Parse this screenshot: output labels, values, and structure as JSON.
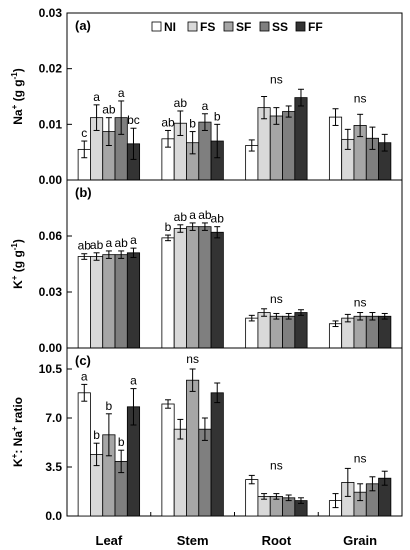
{
  "chart_data": {
    "type": "bar",
    "categories": [
      "Leaf",
      "Stem",
      "Root",
      "Grain"
    ],
    "legend": {
      "placement": "top-center",
      "entries": [
        {
          "name": "NI",
          "color": "#ffffff"
        },
        {
          "name": "FS",
          "color": "#d9d9d9"
        },
        {
          "name": "SF",
          "color": "#a6a6a6"
        },
        {
          "name": "SS",
          "color": "#7f7f7f"
        },
        {
          "name": "FF",
          "color": "#333333"
        }
      ]
    },
    "panels": [
      {
        "label": "(a)",
        "ylabel_main": "Na",
        "ylabel_sup": "+",
        "ylabel_rest": " (g g",
        "ylabel_sup2": "-1",
        "ylabel_end": ")",
        "ylim": [
          0,
          0.03
        ],
        "yticks": [
          "0.00",
          "0.01",
          "0.02",
          "0.03"
        ],
        "ytick_values": [
          0,
          0.01,
          0.02,
          0.03
        ],
        "series": [
          {
            "name": "NI",
            "values": [
              0.0055,
              0.0074,
              0.0062,
              0.0113
            ],
            "errors": [
              0.0015,
              0.0015,
              0.001,
              0.0015
            ]
          },
          {
            "name": "FS",
            "values": [
              0.0112,
              0.0102,
              0.013,
              0.0073
            ],
            "errors": [
              0.0023,
              0.0022,
              0.002,
              0.0018
            ]
          },
          {
            "name": "SF",
            "values": [
              0.0087,
              0.0067,
              0.0115,
              0.0098
            ],
            "errors": [
              0.0025,
              0.002,
              0.0015,
              0.002
            ]
          },
          {
            "name": "SS",
            "values": [
              0.0112,
              0.0104,
              0.0123,
              0.0075
            ],
            "errors": [
              0.003,
              0.0015,
              0.001,
              0.002
            ]
          },
          {
            "name": "FF",
            "values": [
              0.0065,
              0.007,
              0.0148,
              0.0067
            ],
            "errors": [
              0.0028,
              0.003,
              0.0015,
              0.0015
            ]
          }
        ],
        "annotations": [
          {
            "category": 0,
            "labels": [
              "c",
              "a",
              "ab",
              "a",
              "bc"
            ]
          },
          {
            "category": 1,
            "labels": [
              "ab",
              "ab",
              "b",
              "a",
              "b"
            ]
          },
          {
            "category": 2,
            "text": "ns"
          },
          {
            "category": 3,
            "text": "ns"
          }
        ]
      },
      {
        "label": "(b)",
        "ylabel_main": "K",
        "ylabel_sup": "+",
        "ylabel_rest": " (g g",
        "ylabel_sup2": "-1",
        "ylabel_end": ")",
        "ylim": [
          0,
          0.09
        ],
        "yticks": [
          "0.00",
          "0.03",
          "0.06"
        ],
        "ytick_values": [
          0,
          0.03,
          0.06
        ],
        "series": [
          {
            "name": "NI",
            "values": [
              0.049,
              0.059,
              0.016,
              0.013
            ],
            "errors": [
              0.0015,
              0.0015,
              0.0015,
              0.0015
            ]
          },
          {
            "name": "FS",
            "values": [
              0.049,
              0.064,
              0.019,
              0.016
            ],
            "errors": [
              0.002,
              0.002,
              0.002,
              0.002
            ]
          },
          {
            "name": "SF",
            "values": [
              0.05,
              0.065,
              0.017,
              0.017
            ],
            "errors": [
              0.002,
              0.002,
              0.0015,
              0.002
            ]
          },
          {
            "name": "SS",
            "values": [
              0.05,
              0.065,
              0.017,
              0.017
            ],
            "errors": [
              0.002,
              0.002,
              0.0015,
              0.002
            ]
          },
          {
            "name": "FF",
            "values": [
              0.051,
              0.062,
              0.019,
              0.017
            ],
            "errors": [
              0.0025,
              0.003,
              0.0015,
              0.0015
            ]
          }
        ],
        "annotations": [
          {
            "category": 0,
            "labels": [
              "ab",
              "ab",
              "a",
              "ab",
              "a"
            ]
          },
          {
            "category": 1,
            "labels": [
              "b",
              "ab",
              "a",
              "ab",
              "ab"
            ]
          },
          {
            "category": 2,
            "text": "ns"
          },
          {
            "category": 3,
            "text": "ns"
          }
        ]
      },
      {
        "label": "(c)",
        "ylabel_main": "K",
        "ylabel_sup": "+",
        "ylabel_rest": ": Na",
        "ylabel_sup2": "+",
        "ylabel_end": " ratio",
        "ylim": [
          0,
          12
        ],
        "yticks": [
          "0.0",
          "3.5",
          "7.0",
          "10.5"
        ],
        "ytick_values": [
          0,
          3.5,
          7.0,
          10.5
        ],
        "series": [
          {
            "name": "NI",
            "values": [
              8.8,
              8.0,
              2.6,
              1.1
            ],
            "errors": [
              0.6,
              0.3,
              0.3,
              0.5
            ]
          },
          {
            "name": "FS",
            "values": [
              4.4,
              6.2,
              1.4,
              2.4
            ],
            "errors": [
              0.8,
              0.7,
              0.2,
              1.0
            ]
          },
          {
            "name": "SF",
            "values": [
              5.8,
              9.7,
              1.4,
              1.7
            ],
            "errors": [
              1.5,
              0.8,
              0.2,
              0.6
            ]
          },
          {
            "name": "SS",
            "values": [
              3.9,
              6.2,
              1.3,
              2.3
            ],
            "errors": [
              0.8,
              0.8,
              0.2,
              0.5
            ]
          },
          {
            "name": "FF",
            "values": [
              7.8,
              8.8,
              1.1,
              2.7
            ],
            "errors": [
              1.3,
              0.7,
              0.2,
              0.5
            ]
          }
        ],
        "annotations": [
          {
            "category": 0,
            "labels": [
              "a",
              "b",
              "b",
              "b",
              "a"
            ]
          },
          {
            "category": 1,
            "text": "ns"
          },
          {
            "category": 2,
            "text": "ns"
          },
          {
            "category": 3,
            "text": "ns"
          }
        ]
      }
    ]
  }
}
